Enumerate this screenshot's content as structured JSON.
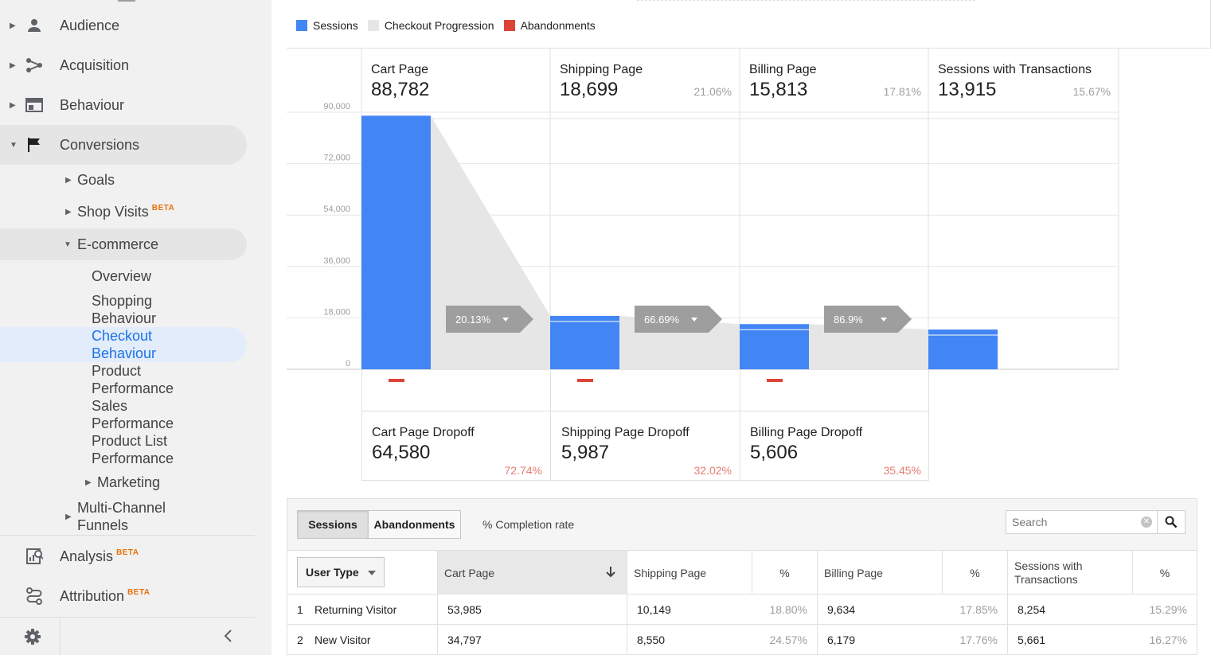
{
  "sidebar": {
    "audience": "Audience",
    "acquisition": "Acquisition",
    "behaviour": "Behaviour",
    "conversions": "Conversions",
    "goals": "Goals",
    "shop_visits": "Shop Visits",
    "ecommerce": "E-commerce",
    "overview": "Overview",
    "shopping_behaviour": [
      "Shopping",
      "Behaviour"
    ],
    "checkout_behaviour": [
      "Checkout",
      "Behaviour"
    ],
    "product_performance": [
      "Product",
      "Performance"
    ],
    "sales_performance": [
      "Sales",
      "Performance"
    ],
    "product_list_performance": [
      "Product List",
      "Performance"
    ],
    "marketing": "Marketing",
    "multi_channel": [
      "Multi-Channel",
      "Funnels"
    ],
    "analysis": "Analysis",
    "attribution": "Attribution",
    "beta": "BETA"
  },
  "legend": [
    {
      "label": "Sessions",
      "color": "#4285f4"
    },
    {
      "label": "Checkout Progression",
      "color": "#e6e6e6"
    },
    {
      "label": "Abandonments",
      "color": "#db4437"
    }
  ],
  "chart_data": {
    "type": "bar",
    "categories": [
      "Cart Page",
      "Shipping Page",
      "Billing Page",
      "Sessions with Transactions"
    ],
    "series": [
      {
        "name": "Sessions",
        "values": [
          88782,
          18699,
          15813,
          13915
        ]
      }
    ],
    "ylim": [
      0,
      90000
    ],
    "yticks": [
      "90,000",
      "72,000",
      "54,000",
      "36,000",
      "18,000",
      "0"
    ],
    "ytick_values": [
      90000,
      72000,
      54000,
      36000,
      18000,
      0
    ],
    "step_values": [
      "88,782",
      "18,699",
      "15,813",
      "13,915"
    ],
    "step_pct": [
      "",
      "21.06%",
      "17.81%",
      "15.67%"
    ],
    "progression": [
      "20.13%",
      "66.69%",
      "86.9%"
    ],
    "dropoffs": [
      {
        "name": "Cart Page Dropoff",
        "value": "64,580",
        "pct": "72.74%"
      },
      {
        "name": "Shipping Page Dropoff",
        "value": "5,987",
        "pct": "32.02%"
      },
      {
        "name": "Billing Page Dropoff",
        "value": "5,606",
        "pct": "35.45%"
      }
    ],
    "colors": {
      "bar": "#4285f4",
      "progress": "#e6e6e6",
      "drop": "#db4437",
      "arrow": "#9e9e9e"
    }
  },
  "table": {
    "tabs": [
      "Sessions",
      "Abandonments"
    ],
    "completion": "% Completion rate",
    "search_placeholder": "Search",
    "dimension": "User Type",
    "headers": [
      "Cart Page",
      "Shipping Page",
      "%",
      "Billing Page",
      "%",
      "Sessions with Transactions",
      "%"
    ],
    "rows": [
      {
        "idx": "1",
        "name": "Returning Visitor",
        "cart": "53,985",
        "ship": "10,149",
        "ship_pct": "18.80%",
        "bill": "9,634",
        "bill_pct": "17.85%",
        "trans": "8,254",
        "trans_pct": "15.29%"
      },
      {
        "idx": "2",
        "name": "New Visitor",
        "cart": "34,797",
        "ship": "8,550",
        "ship_pct": "24.57%",
        "bill": "6,179",
        "bill_pct": "17.76%",
        "trans": "5,661",
        "trans_pct": "16.27%"
      }
    ]
  }
}
